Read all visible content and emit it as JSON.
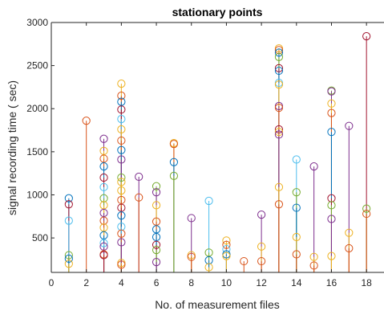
{
  "chart_data": {
    "type": "stem",
    "title": "stationary points",
    "xlabel": "No. of measurement files",
    "ylabel": "signal recording time ( sec)",
    "xlim": [
      0,
      19
    ],
    "ylim": [
      100,
      3000
    ],
    "xticks": [
      "0",
      "2",
      "4",
      "6",
      "8",
      "10",
      "12",
      "14",
      "16",
      "18"
    ],
    "yticks": [
      "500",
      "1000",
      "1500",
      "2000",
      "2500",
      "3000"
    ],
    "grid": false,
    "palette": [
      "#0072BD",
      "#D95319",
      "#EDB120",
      "#7E2F8E",
      "#77AC30",
      "#4DBEEE",
      "#A2142F"
    ],
    "points": [
      {
        "x": 1,
        "y": 960,
        "c": 0
      },
      {
        "x": 1,
        "y": 890,
        "c": 6
      },
      {
        "x": 1,
        "y": 700,
        "c": 5
      },
      {
        "x": 1,
        "y": 300,
        "c": 4
      },
      {
        "x": 1,
        "y": 260,
        "c": 0
      },
      {
        "x": 1,
        "y": 200,
        "c": 2
      },
      {
        "x": 2,
        "y": 1860,
        "c": 1
      },
      {
        "x": 3,
        "y": 1650,
        "c": 3
      },
      {
        "x": 3,
        "y": 1510,
        "c": 2
      },
      {
        "x": 3,
        "y": 1420,
        "c": 1
      },
      {
        "x": 3,
        "y": 1330,
        "c": 0
      },
      {
        "x": 3,
        "y": 1200,
        "c": 6
      },
      {
        "x": 3,
        "y": 1090,
        "c": 5
      },
      {
        "x": 3,
        "y": 960,
        "c": 4
      },
      {
        "x": 3,
        "y": 880,
        "c": 2
      },
      {
        "x": 3,
        "y": 790,
        "c": 3
      },
      {
        "x": 3,
        "y": 700,
        "c": 1
      },
      {
        "x": 3,
        "y": 620,
        "c": 2
      },
      {
        "x": 3,
        "y": 530,
        "c": 0
      },
      {
        "x": 3,
        "y": 440,
        "c": 5
      },
      {
        "x": 3,
        "y": 400,
        "c": 3
      },
      {
        "x": 3,
        "y": 310,
        "c": 1
      },
      {
        "x": 3,
        "y": 300,
        "c": 6
      },
      {
        "x": 4,
        "y": 2290,
        "c": 2
      },
      {
        "x": 4,
        "y": 2150,
        "c": 1
      },
      {
        "x": 4,
        "y": 2080,
        "c": 0
      },
      {
        "x": 4,
        "y": 1990,
        "c": 6
      },
      {
        "x": 4,
        "y": 1880,
        "c": 5
      },
      {
        "x": 4,
        "y": 1760,
        "c": 2
      },
      {
        "x": 4,
        "y": 1630,
        "c": 1
      },
      {
        "x": 4,
        "y": 1520,
        "c": 0
      },
      {
        "x": 4,
        "y": 1410,
        "c": 3
      },
      {
        "x": 4,
        "y": 1200,
        "c": 4
      },
      {
        "x": 4,
        "y": 1150,
        "c": 2
      },
      {
        "x": 4,
        "y": 1050,
        "c": 2
      },
      {
        "x": 4,
        "y": 940,
        "c": 1
      },
      {
        "x": 4,
        "y": 850,
        "c": 6
      },
      {
        "x": 4,
        "y": 760,
        "c": 0
      },
      {
        "x": 4,
        "y": 630,
        "c": 5
      },
      {
        "x": 4,
        "y": 550,
        "c": 1
      },
      {
        "x": 4,
        "y": 450,
        "c": 3
      },
      {
        "x": 4,
        "y": 210,
        "c": 2
      },
      {
        "x": 4,
        "y": 190,
        "c": 1
      },
      {
        "x": 5,
        "y": 1210,
        "c": 3
      },
      {
        "x": 5,
        "y": 970,
        "c": 1
      },
      {
        "x": 6,
        "y": 1100,
        "c": 4
      },
      {
        "x": 6,
        "y": 1030,
        "c": 3
      },
      {
        "x": 6,
        "y": 880,
        "c": 2
      },
      {
        "x": 6,
        "y": 690,
        "c": 1
      },
      {
        "x": 6,
        "y": 600,
        "c": 0
      },
      {
        "x": 6,
        "y": 510,
        "c": 0
      },
      {
        "x": 6,
        "y": 420,
        "c": 6
      },
      {
        "x": 6,
        "y": 360,
        "c": 4
      },
      {
        "x": 6,
        "y": 220,
        "c": 3
      },
      {
        "x": 7,
        "y": 1600,
        "c": 2
      },
      {
        "x": 7,
        "y": 1590,
        "c": 1
      },
      {
        "x": 7,
        "y": 1380,
        "c": 0
      },
      {
        "x": 7,
        "y": 1220,
        "c": 4
      },
      {
        "x": 8,
        "y": 730,
        "c": 3
      },
      {
        "x": 8,
        "y": 300,
        "c": 2
      },
      {
        "x": 8,
        "y": 280,
        "c": 1
      },
      {
        "x": 9,
        "y": 930,
        "c": 5
      },
      {
        "x": 9,
        "y": 330,
        "c": 4
      },
      {
        "x": 9,
        "y": 240,
        "c": 0
      },
      {
        "x": 9,
        "y": 160,
        "c": 2
      },
      {
        "x": 10,
        "y": 470,
        "c": 2
      },
      {
        "x": 10,
        "y": 420,
        "c": 1
      },
      {
        "x": 10,
        "y": 370,
        "c": 5
      },
      {
        "x": 10,
        "y": 310,
        "c": 0
      },
      {
        "x": 10,
        "y": 290,
        "c": 2
      },
      {
        "x": 11,
        "y": 230,
        "c": 1
      },
      {
        "x": 12,
        "y": 770,
        "c": 3
      },
      {
        "x": 12,
        "y": 400,
        "c": 2
      },
      {
        "x": 12,
        "y": 230,
        "c": 1
      },
      {
        "x": 13,
        "y": 2700,
        "c": 2
      },
      {
        "x": 13,
        "y": 2680,
        "c": 1
      },
      {
        "x": 13,
        "y": 2650,
        "c": 0
      },
      {
        "x": 13,
        "y": 2600,
        "c": 4
      },
      {
        "x": 13,
        "y": 2470,
        "c": 6
      },
      {
        "x": 13,
        "y": 2440,
        "c": 0
      },
      {
        "x": 13,
        "y": 2300,
        "c": 5
      },
      {
        "x": 13,
        "y": 2280,
        "c": 2
      },
      {
        "x": 13,
        "y": 2030,
        "c": 3
      },
      {
        "x": 13,
        "y": 2010,
        "c": 1
      },
      {
        "x": 13,
        "y": 1760,
        "c": 6
      },
      {
        "x": 13,
        "y": 1730,
        "c": 2
      },
      {
        "x": 13,
        "y": 1700,
        "c": 3
      },
      {
        "x": 13,
        "y": 1090,
        "c": 2
      },
      {
        "x": 13,
        "y": 890,
        "c": 1
      },
      {
        "x": 14,
        "y": 1410,
        "c": 5
      },
      {
        "x": 14,
        "y": 1030,
        "c": 4
      },
      {
        "x": 14,
        "y": 850,
        "c": 0
      },
      {
        "x": 14,
        "y": 510,
        "c": 2
      },
      {
        "x": 14,
        "y": 310,
        "c": 1
      },
      {
        "x": 15,
        "y": 1330,
        "c": 3
      },
      {
        "x": 15,
        "y": 280,
        "c": 2
      },
      {
        "x": 15,
        "y": 180,
        "c": 1
      },
      {
        "x": 16,
        "y": 2210,
        "c": 4
      },
      {
        "x": 16,
        "y": 2200,
        "c": 3
      },
      {
        "x": 16,
        "y": 2060,
        "c": 2
      },
      {
        "x": 16,
        "y": 1950,
        "c": 1
      },
      {
        "x": 16,
        "y": 1730,
        "c": 0
      },
      {
        "x": 16,
        "y": 960,
        "c": 6
      },
      {
        "x": 16,
        "y": 880,
        "c": 4
      },
      {
        "x": 16,
        "y": 720,
        "c": 3
      },
      {
        "x": 16,
        "y": 290,
        "c": 2
      },
      {
        "x": 17,
        "y": 1800,
        "c": 3
      },
      {
        "x": 17,
        "y": 560,
        "c": 2
      },
      {
        "x": 17,
        "y": 380,
        "c": 1
      },
      {
        "x": 18,
        "y": 2840,
        "c": 6
      },
      {
        "x": 18,
        "y": 840,
        "c": 4
      },
      {
        "x": 18,
        "y": 780,
        "c": 1
      }
    ]
  }
}
